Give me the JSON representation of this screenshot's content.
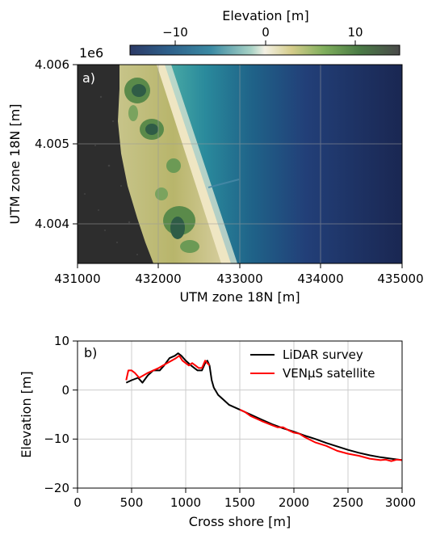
{
  "figure": {
    "colorbar": {
      "label": "Elevation [m]",
      "ticks": [
        -10,
        0,
        10
      ],
      "tick_labels": [
        "−10",
        "0",
        "10"
      ],
      "range": [
        -15,
        15
      ]
    },
    "panel_a": {
      "tag": "a)",
      "xlabel": "UTM zone 18N [m]",
      "ylabel": "UTM zone 18N [m]",
      "offset_label": "1e6",
      "xticks": [
        431000,
        432000,
        433000,
        434000,
        435000
      ],
      "xtick_labels": [
        "431000",
        "432000",
        "433000",
        "434000",
        "435000"
      ],
      "yticks": [
        4.006,
        4.005,
        4.004
      ],
      "ytick_labels": [
        "4.006",
        "4.005",
        "4.004"
      ],
      "xlim": [
        431000,
        435000
      ],
      "ylim": [
        4.00353,
        4.006
      ]
    },
    "panel_b": {
      "tag": "b)",
      "xlabel": "Cross shore [m]",
      "ylabel": "Elevation [m]",
      "xtick_labels": [
        "0",
        "500",
        "1000",
        "1500",
        "2000",
        "2500",
        "3000"
      ],
      "ytick_labels": [
        "10",
        "0",
        "−10",
        "−20"
      ]
    }
  },
  "chart_data": [
    {
      "type": "heatmap",
      "tag": "a)",
      "xlabel": "UTM zone 18N [m]",
      "ylabel": "UTM zone 18N [m]",
      "y_offset": "1e6",
      "xlim": [
        431000,
        435000
      ],
      "ylim": [
        4.00353,
        4.006
      ],
      "xticks": [
        431000,
        432000,
        433000,
        434000,
        435000
      ],
      "yticks": [
        4.004,
        4.005,
        4.006
      ],
      "colorbar": {
        "label": "Elevation [m]",
        "range": [
          -15,
          15
        ],
        "ticks": [
          -10,
          0,
          10
        ]
      },
      "grid": true
    },
    {
      "type": "line",
      "tag": "b)",
      "xlabel": "Cross shore [m]",
      "ylabel": "Elevation [m]",
      "xlim": [
        0,
        3000
      ],
      "ylim": [
        -20,
        10
      ],
      "xticks": [
        0,
        500,
        1000,
        1500,
        2000,
        2500,
        3000
      ],
      "yticks": [
        -20,
        -10,
        0,
        10
      ],
      "grid": true,
      "legend_position": "upper-right",
      "series": [
        {
          "name": "LiDAR survey",
          "color": "#000000",
          "points": [
            [
              450,
              1.5
            ],
            [
              500,
              2
            ],
            [
              560,
              2.5
            ],
            [
              600,
              1.5
            ],
            [
              650,
              3
            ],
            [
              700,
              4
            ],
            [
              760,
              4
            ],
            [
              800,
              5
            ],
            [
              850,
              6.5
            ],
            [
              900,
              7
            ],
            [
              930,
              7.5
            ],
            [
              960,
              7
            ],
            [
              1000,
              6
            ],
            [
              1050,
              5
            ],
            [
              1080,
              4.5
            ],
            [
              1110,
              4
            ],
            [
              1150,
              4
            ],
            [
              1180,
              5.5
            ],
            [
              1200,
              6
            ],
            [
              1220,
              5
            ],
            [
              1240,
              2
            ],
            [
              1260,
              0.5
            ],
            [
              1300,
              -1
            ],
            [
              1350,
              -2
            ],
            [
              1400,
              -3
            ],
            [
              1450,
              -3.5
            ],
            [
              1500,
              -4
            ],
            [
              1550,
              -4.5
            ],
            [
              1600,
              -5
            ],
            [
              1700,
              -6
            ],
            [
              1800,
              -7
            ],
            [
              1900,
              -7.8
            ],
            [
              2000,
              -8.5
            ],
            [
              2100,
              -9.3
            ],
            [
              2200,
              -10
            ],
            [
              2300,
              -10.8
            ],
            [
              2400,
              -11.5
            ],
            [
              2500,
              -12.2
            ],
            [
              2600,
              -12.8
            ],
            [
              2700,
              -13.3
            ],
            [
              2800,
              -13.7
            ],
            [
              2900,
              -14
            ],
            [
              3000,
              -14.3
            ]
          ]
        },
        {
          "name": "VENµS satellite",
          "color": "#ff0000",
          "segments": [
            [
              [
                450,
                2
              ],
              [
                470,
                4
              ],
              [
                500,
                4
              ],
              [
                530,
                3.5
              ],
              [
                570,
                2.5
              ],
              [
                610,
                3
              ],
              [
                650,
                3.5
              ],
              [
                700,
                4
              ],
              [
                750,
                4.5
              ],
              [
                790,
                5
              ],
              [
                830,
                5.5
              ],
              [
                870,
                6
              ],
              [
                910,
                6.5
              ],
              [
                940,
                7
              ],
              [
                970,
                6
              ],
              [
                1000,
                5.5
              ],
              [
                1030,
                5
              ],
              [
                1060,
                5.5
              ],
              [
                1090,
                5
              ],
              [
                1120,
                4.5
              ],
              [
                1150,
                4.5
              ],
              [
                1180,
                6
              ],
              [
                1200,
                5.5
              ],
              [
                1220,
                5
              ]
            ],
            [
              [
                1500,
                -4
              ],
              [
                1550,
                -4.5
              ],
              [
                1600,
                -5.3
              ],
              [
                1700,
                -6.3
              ],
              [
                1800,
                -7.2
              ],
              [
                1850,
                -7.6
              ],
              [
                1900,
                -7.6
              ],
              [
                1950,
                -8.2
              ],
              [
                2000,
                -8.7
              ],
              [
                2050,
                -8.9
              ],
              [
                2100,
                -9.6
              ],
              [
                2200,
                -10.7
              ],
              [
                2300,
                -11.4
              ],
              [
                2400,
                -12.4
              ],
              [
                2500,
                -13
              ],
              [
                2600,
                -13.4
              ],
              [
                2700,
                -14
              ],
              [
                2800,
                -14.3
              ],
              [
                2850,
                -14.2
              ],
              [
                2900,
                -14.5
              ],
              [
                2950,
                -14.2
              ],
              [
                3000,
                -14.3
              ]
            ]
          ]
        }
      ]
    }
  ]
}
